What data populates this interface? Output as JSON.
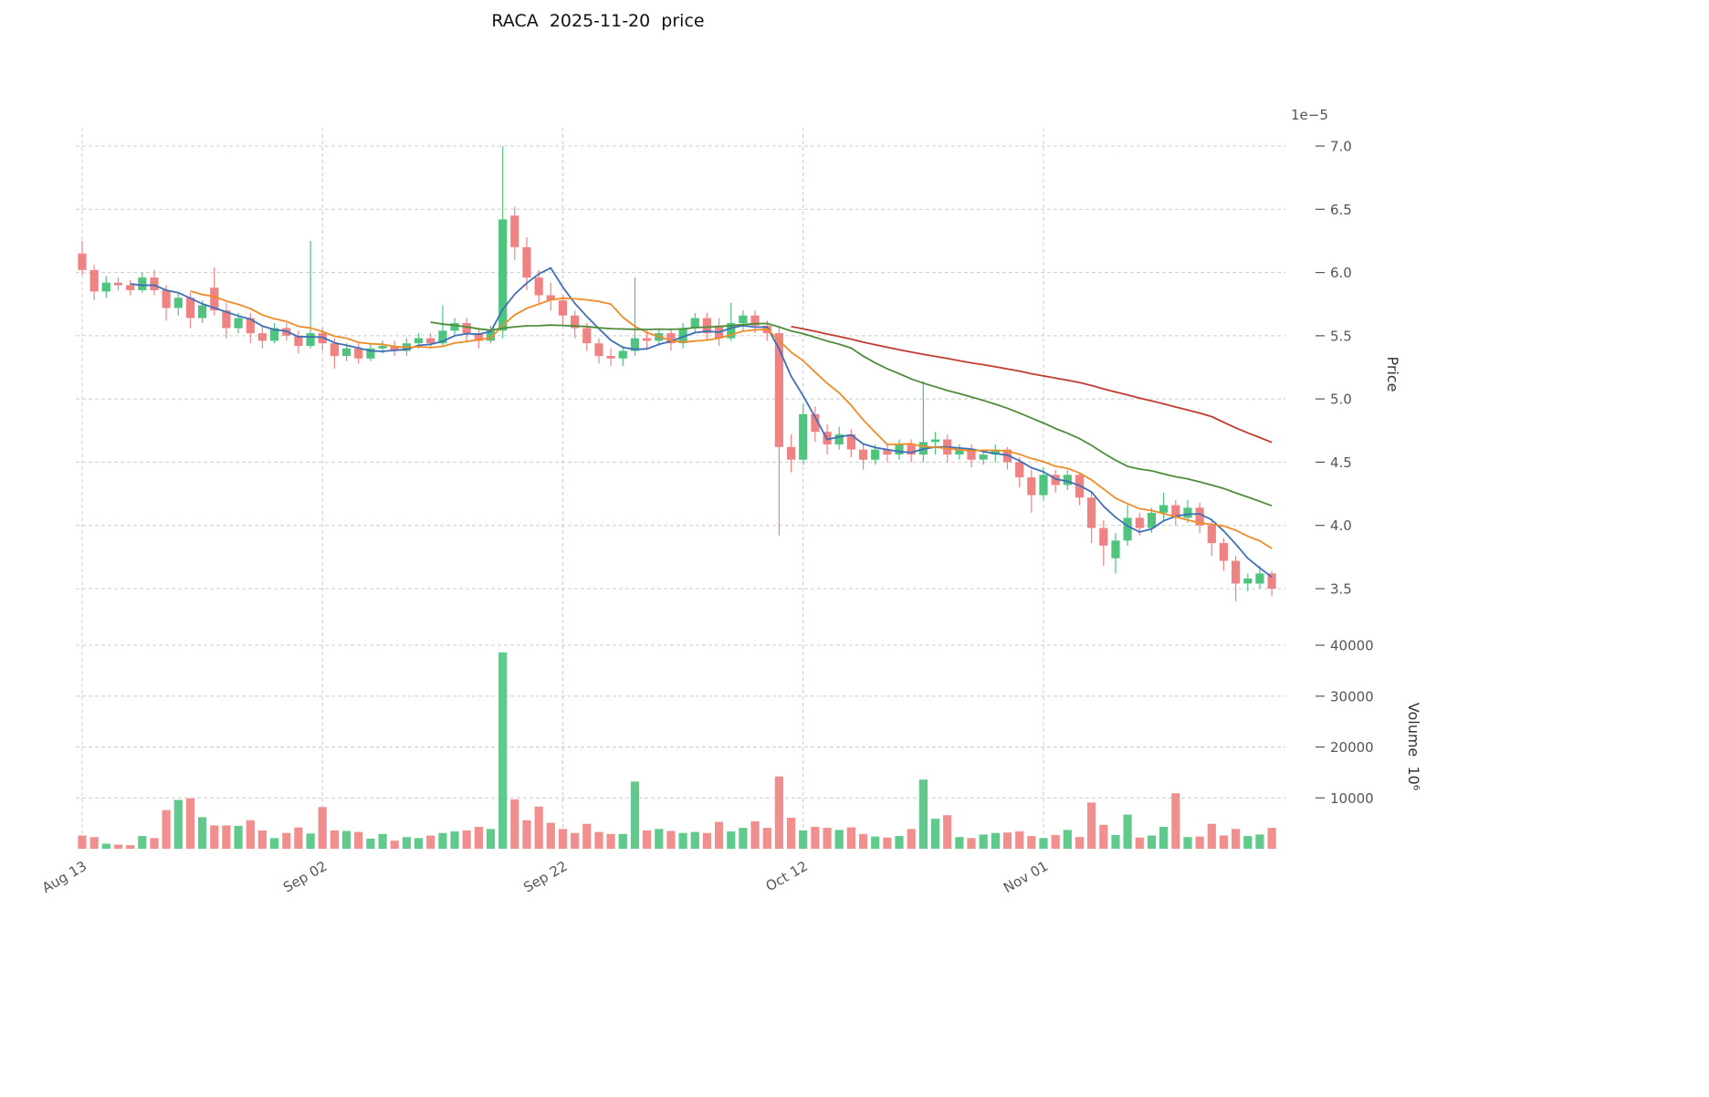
{
  "chart_data": {
    "type": "candlestick",
    "title": "RACA  2025-11-20  price",
    "legend": "none",
    "grid": "dashed",
    "panels": [
      "price",
      "volume"
    ],
    "x_axis": {
      "rotation": 30,
      "tick_labels": [
        {
          "index": 0,
          "label": "Aug 13"
        },
        {
          "index": 20,
          "label": "Sep 02"
        },
        {
          "index": 40,
          "label": "Sep 22"
        },
        {
          "index": 60,
          "label": "Oct 12"
        },
        {
          "index": 80,
          "label": "Nov 01"
        }
      ]
    },
    "y_axis": {
      "title": "Price",
      "side": "right",
      "offset_label": "1e−5",
      "range": [
        3.5,
        7.0
      ],
      "ticks": [
        {
          "value": 3.5,
          "label": "3.5"
        },
        {
          "value": 4.0,
          "label": "4.0"
        },
        {
          "value": 4.5,
          "label": "4.5"
        },
        {
          "value": 5.0,
          "label": "5.0"
        },
        {
          "value": 5.5,
          "label": "5.5"
        },
        {
          "value": 6.0,
          "label": "6.0"
        },
        {
          "value": 6.5,
          "label": "6.5"
        },
        {
          "value": 7.0,
          "label": "7.0"
        }
      ]
    },
    "volume_axis": {
      "title": "Volume  10⁶",
      "side": "right",
      "range": [
        0,
        43000
      ],
      "ticks": [
        {
          "value": 10000,
          "label": "10000"
        },
        {
          "value": 20000,
          "label": "20000"
        },
        {
          "value": 30000,
          "label": "30000"
        },
        {
          "value": 40000,
          "label": "40000"
        }
      ]
    },
    "colors": {
      "up": "#4fc47f",
      "down": "#ef8383",
      "grid": "#cccccc",
      "text": "#555555",
      "title": "#111111"
    },
    "moving_averages": [
      {
        "window": 5,
        "color": "#3d6fb8"
      },
      {
        "window": 10,
        "color": "#ef8c28"
      },
      {
        "window": 30,
        "color": "#4d8c3b"
      },
      {
        "window": 60,
        "color": "#c23b30"
      }
    ],
    "ohlc": [
      [
        6.15,
        6.25,
        5.98,
        6.02
      ],
      [
        6.02,
        6.06,
        5.78,
        5.85
      ],
      [
        5.85,
        5.97,
        5.8,
        5.92
      ],
      [
        5.92,
        5.96,
        5.86,
        5.9
      ],
      [
        5.9,
        5.94,
        5.82,
        5.86
      ],
      [
        5.86,
        6.0,
        5.84,
        5.96
      ],
      [
        5.96,
        6.02,
        5.82,
        5.86
      ],
      [
        5.86,
        5.9,
        5.62,
        5.72
      ],
      [
        5.72,
        5.84,
        5.66,
        5.8
      ],
      [
        5.8,
        5.84,
        5.56,
        5.64
      ],
      [
        5.64,
        5.78,
        5.6,
        5.74
      ],
      [
        5.88,
        6.04,
        5.66,
        5.7
      ],
      [
        5.7,
        5.76,
        5.48,
        5.56
      ],
      [
        5.56,
        5.68,
        5.52,
        5.64
      ],
      [
        5.64,
        5.68,
        5.44,
        5.52
      ],
      [
        5.52,
        5.58,
        5.4,
        5.46
      ],
      [
        5.46,
        5.6,
        5.44,
        5.56
      ],
      [
        5.56,
        5.6,
        5.46,
        5.5
      ],
      [
        5.5,
        5.54,
        5.36,
        5.42
      ],
      [
        5.42,
        6.25,
        5.4,
        5.52
      ],
      [
        5.52,
        5.56,
        5.38,
        5.44
      ],
      [
        5.44,
        5.48,
        5.24,
        5.34
      ],
      [
        5.34,
        5.44,
        5.3,
        5.4
      ],
      [
        5.4,
        5.44,
        5.28,
        5.32
      ],
      [
        5.32,
        5.44,
        5.3,
        5.4
      ],
      [
        5.4,
        5.46,
        5.36,
        5.42
      ],
      [
        5.42,
        5.46,
        5.34,
        5.38
      ],
      [
        5.38,
        5.48,
        5.34,
        5.44
      ],
      [
        5.44,
        5.52,
        5.4,
        5.48
      ],
      [
        5.48,
        5.52,
        5.4,
        5.44
      ],
      [
        5.44,
        5.74,
        5.42,
        5.54
      ],
      [
        5.54,
        5.64,
        5.5,
        5.6
      ],
      [
        5.6,
        5.64,
        5.46,
        5.52
      ],
      [
        5.52,
        5.56,
        5.4,
        5.46
      ],
      [
        5.46,
        5.58,
        5.44,
        5.54
      ],
      [
        5.54,
        7.0,
        5.48,
        6.42
      ],
      [
        6.45,
        6.52,
        6.1,
        6.2
      ],
      [
        6.2,
        6.28,
        5.86,
        5.96
      ],
      [
        5.96,
        6.02,
        5.74,
        5.82
      ],
      [
        5.82,
        5.92,
        5.7,
        5.78
      ],
      [
        5.78,
        5.82,
        5.58,
        5.66
      ],
      [
        5.66,
        5.7,
        5.48,
        5.56
      ],
      [
        5.56,
        5.6,
        5.38,
        5.44
      ],
      [
        5.44,
        5.48,
        5.28,
        5.34
      ],
      [
        5.34,
        5.4,
        5.26,
        5.32
      ],
      [
        5.32,
        5.42,
        5.26,
        5.38
      ],
      [
        5.38,
        5.96,
        5.34,
        5.48
      ],
      [
        5.48,
        5.54,
        5.4,
        5.46
      ],
      [
        5.46,
        5.56,
        5.42,
        5.52
      ],
      [
        5.52,
        5.56,
        5.38,
        5.44
      ],
      [
        5.44,
        5.6,
        5.4,
        5.56
      ],
      [
        5.56,
        5.68,
        5.52,
        5.64
      ],
      [
        5.64,
        5.68,
        5.46,
        5.52
      ],
      [
        5.58,
        5.64,
        5.42,
        5.48
      ],
      [
        5.48,
        5.76,
        5.46,
        5.6
      ],
      [
        5.6,
        5.7,
        5.54,
        5.66
      ],
      [
        5.66,
        5.7,
        5.52,
        5.58
      ],
      [
        5.58,
        5.62,
        5.46,
        5.52
      ],
      [
        5.52,
        5.58,
        3.92,
        4.62
      ],
      [
        4.62,
        4.72,
        4.42,
        4.52
      ],
      [
        4.52,
        4.96,
        4.48,
        4.88
      ],
      [
        4.88,
        4.94,
        4.66,
        4.74
      ],
      [
        4.74,
        4.8,
        4.56,
        4.64
      ],
      [
        4.64,
        4.78,
        4.6,
        4.72
      ],
      [
        4.72,
        4.76,
        4.54,
        4.6
      ],
      [
        4.6,
        4.64,
        4.44,
        4.52
      ],
      [
        4.52,
        4.64,
        4.48,
        4.6
      ],
      [
        4.6,
        4.64,
        4.5,
        4.56
      ],
      [
        4.56,
        4.68,
        4.52,
        4.64
      ],
      [
        4.64,
        4.68,
        4.5,
        4.56
      ],
      [
        4.56,
        5.14,
        4.5,
        4.66
      ],
      [
        4.66,
        4.74,
        4.56,
        4.68
      ],
      [
        4.68,
        4.72,
        4.5,
        4.56
      ],
      [
        4.56,
        4.64,
        4.52,
        4.6
      ],
      [
        4.6,
        4.64,
        4.46,
        4.52
      ],
      [
        4.52,
        4.6,
        4.48,
        4.56
      ],
      [
        4.56,
        4.64,
        4.5,
        4.6
      ],
      [
        4.6,
        4.62,
        4.44,
        4.5
      ],
      [
        4.5,
        4.54,
        4.3,
        4.38
      ],
      [
        4.38,
        4.44,
        4.1,
        4.24
      ],
      [
        4.24,
        4.46,
        4.2,
        4.4
      ],
      [
        4.4,
        4.44,
        4.26,
        4.32
      ],
      [
        4.32,
        4.44,
        4.28,
        4.4
      ],
      [
        4.4,
        4.42,
        4.16,
        4.22
      ],
      [
        4.22,
        4.26,
        3.86,
        3.98
      ],
      [
        3.98,
        4.04,
        3.68,
        3.84
      ],
      [
        3.74,
        3.94,
        3.62,
        3.88
      ],
      [
        3.88,
        4.16,
        3.84,
        4.06
      ],
      [
        4.06,
        4.1,
        3.92,
        3.98
      ],
      [
        3.98,
        4.14,
        3.94,
        4.1
      ],
      [
        4.1,
        4.26,
        4.04,
        4.16
      ],
      [
        4.16,
        4.2,
        4.0,
        4.06
      ],
      [
        4.06,
        4.2,
        4.02,
        4.14
      ],
      [
        4.14,
        4.18,
        3.94,
        4.0
      ],
      [
        4.0,
        4.04,
        3.76,
        3.86
      ],
      [
        3.86,
        3.9,
        3.64,
        3.72
      ],
      [
        3.72,
        3.76,
        3.4,
        3.54
      ],
      [
        3.54,
        3.62,
        3.48,
        3.58
      ],
      [
        3.54,
        3.68,
        3.5,
        3.62
      ],
      [
        3.62,
        3.64,
        3.44,
        3.5
      ]
    ],
    "volumes": [
      2600,
      2300,
      1000,
      800,
      700,
      2500,
      2100,
      7600,
      9600,
      9900,
      6200,
      4600,
      4600,
      4500,
      5600,
      3600,
      2100,
      3100,
      4200,
      3000,
      8200,
      3600,
      3500,
      3300,
      2000,
      2900,
      1600,
      2300,
      2100,
      2600,
      3100,
      3400,
      3600,
      4300,
      3900,
      38600,
      9700,
      5600,
      8300,
      5100,
      3900,
      3100,
      4900,
      3300,
      2900,
      2900,
      13200,
      3600,
      3900,
      3500,
      3100,
      3300,
      3100,
      5300,
      3400,
      4100,
      5400,
      4100,
      14200,
      6100,
      3600,
      4300,
      4100,
      3700,
      4200,
      2900,
      2400,
      2200,
      2500,
      3900,
      13600,
      5900,
      6600,
      2300,
      2100,
      2800,
      3100,
      3200,
      3400,
      2500,
      2100,
      2700,
      3700,
      2300,
      9100,
      4700,
      2700,
      6700,
      2200,
      2600,
      4300,
      10900,
      2300,
      2400,
      4900,
      2600,
      3900,
      2500,
      2800,
      4100
    ]
  }
}
